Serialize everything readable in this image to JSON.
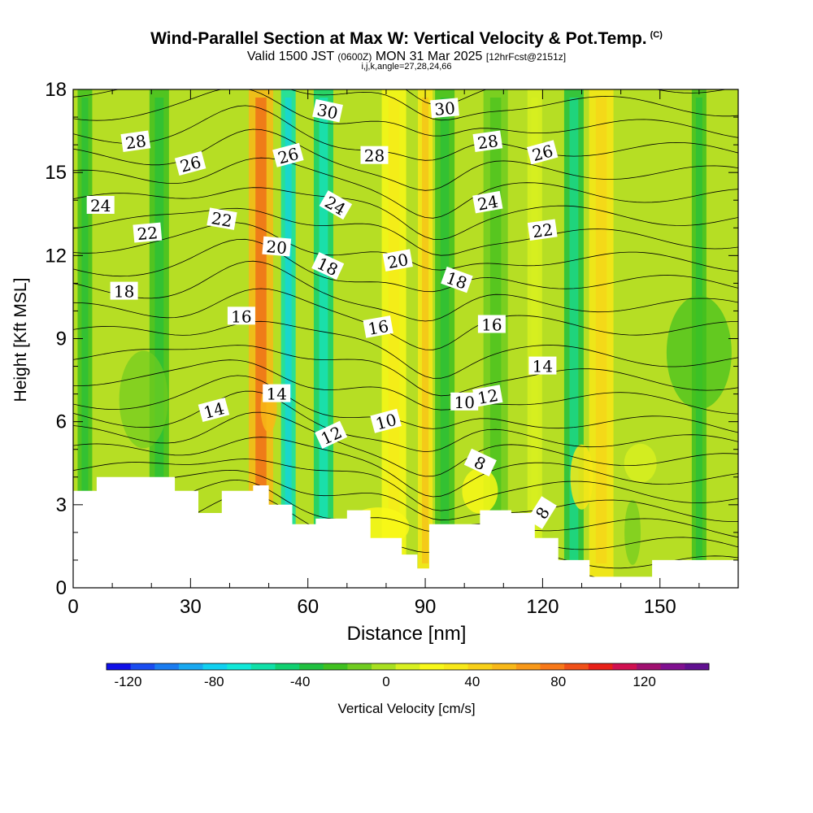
{
  "chart_data": {
    "type": "heatmap",
    "title": "Wind-Parallel Section at Max W: Vertical Velocity & Pot.Temp.",
    "title_mark": "(C)",
    "subtitle_parts": [
      "Valid 1500 JST ",
      "(0600Z)",
      " MON 31 Mar 2025 ",
      "[12hrFcst@2151z]"
    ],
    "subtitle2": "i,j,k,angle=27,28,24,66",
    "xlabel": "Distance [nm]",
    "ylabel": "Height [Kft MSL]",
    "xlim": [
      0,
      170
    ],
    "ylim": [
      0,
      18
    ],
    "x_ticks": [
      0,
      30,
      60,
      90,
      120,
      150
    ],
    "y_ticks": [
      0,
      3,
      6,
      9,
      12,
      15,
      18
    ],
    "colorbar": {
      "label": "Vertical Velocity [cm/s]",
      "ticks": [
        -120,
        -80,
        -40,
        0,
        40,
        80,
        120
      ],
      "range": [
        -130,
        150
      ],
      "colors": [
        "#1010e8",
        "#1a4cf0",
        "#1a7cf0",
        "#18a8f0",
        "#10d0f0",
        "#10e8d8",
        "#10e0a8",
        "#10d070",
        "#20c040",
        "#40c020",
        "#70cc20",
        "#a8e020",
        "#d8f020",
        "#f8f818",
        "#f8e818",
        "#f8d018",
        "#f8b818",
        "#f89818",
        "#f87818",
        "#f05018",
        "#e82018",
        "#d01050",
        "#a01070",
        "#801090",
        "#601090"
      ]
    },
    "theta_contour_labels": [
      "8",
      "8",
      "10",
      "10",
      "12",
      "12",
      "14",
      "14",
      "14",
      "16",
      "16",
      "16",
      "18",
      "18",
      "18",
      "20",
      "20",
      "22",
      "22",
      "22",
      "24",
      "24",
      "24",
      "26",
      "26",
      "26",
      "28",
      "28",
      "28",
      "30",
      "30"
    ],
    "velocity_bands": [
      {
        "x": 3,
        "w": -20
      },
      {
        "x": 22,
        "w": -25
      },
      {
        "x": 48,
        "w": 60
      },
      {
        "x": 55,
        "w": -55
      },
      {
        "x": 64,
        "w": -45
      },
      {
        "x": 82,
        "w": 20
      },
      {
        "x": 90,
        "w": 35
      },
      {
        "x": 95,
        "w": -25
      },
      {
        "x": 108,
        "w": -15
      },
      {
        "x": 118,
        "w": 10
      },
      {
        "x": 128,
        "w": -40
      },
      {
        "x": 135,
        "w": 30
      },
      {
        "x": 160,
        "w": -20
      }
    ],
    "terrain_height_kft": [
      {
        "x": 0,
        "h": 3.5
      },
      {
        "x": 6,
        "h": 4.0
      },
      {
        "x": 26,
        "h": 3.5
      },
      {
        "x": 32,
        "h": 2.7
      },
      {
        "x": 38,
        "h": 3.5
      },
      {
        "x": 46,
        "h": 3.7
      },
      {
        "x": 50,
        "h": 3.0
      },
      {
        "x": 56,
        "h": 2.3
      },
      {
        "x": 62,
        "h": 2.5
      },
      {
        "x": 70,
        "h": 2.8
      },
      {
        "x": 76,
        "h": 1.8
      },
      {
        "x": 84,
        "h": 1.2
      },
      {
        "x": 88,
        "h": 0.7
      },
      {
        "x": 91,
        "h": 2.3
      },
      {
        "x": 104,
        "h": 2.8
      },
      {
        "x": 112,
        "h": 2.7
      },
      {
        "x": 118,
        "h": 1.8
      },
      {
        "x": 124,
        "h": 1.0
      },
      {
        "x": 132,
        "h": 0.4
      },
      {
        "x": 142,
        "h": 0.4
      },
      {
        "x": 148,
        "h": 1.0
      },
      {
        "x": 170,
        "h": 1.0
      }
    ]
  }
}
